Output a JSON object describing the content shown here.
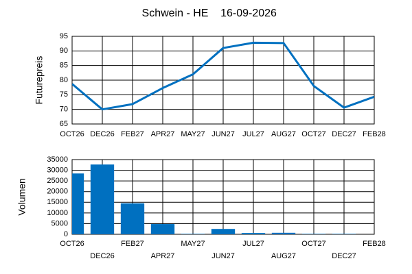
{
  "title": "Schwein - HE",
  "date": "16-09-2026",
  "chart_data": [
    {
      "type": "line",
      "ylabel": "Futurepreis",
      "categories": [
        "OCT26",
        "DEC26",
        "FEB27",
        "APR27",
        "MAY27",
        "JUN27",
        "JUL27",
        "AUG27",
        "OCT27",
        "DEC27",
        "FEB28"
      ],
      "values": [
        78.7,
        70,
        71.8,
        77.3,
        82,
        91,
        92.8,
        92.7,
        78,
        70.6,
        74.3
      ],
      "color": "#0070c0",
      "ylim": [
        65,
        95
      ],
      "yticks": [
        65,
        70,
        75,
        80,
        85,
        90,
        95
      ],
      "grid": true
    },
    {
      "type": "bar",
      "ylabel": "Volumen",
      "categories": [
        "OCT26",
        "DEC26",
        "FEB27",
        "APR27",
        "MAY27",
        "JUN27",
        "JUL27",
        "AUG27",
        "OCT27",
        "DEC27",
        "FEB28"
      ],
      "values": [
        28500,
        32700,
        14500,
        4800,
        200,
        2500,
        600,
        700,
        200,
        200,
        0
      ],
      "color": "#0070c0",
      "ylim": [
        0,
        35000
      ],
      "yticks": [
        0,
        5000,
        10000,
        15000,
        20000,
        25000,
        30000,
        35000
      ],
      "grid": true
    }
  ]
}
